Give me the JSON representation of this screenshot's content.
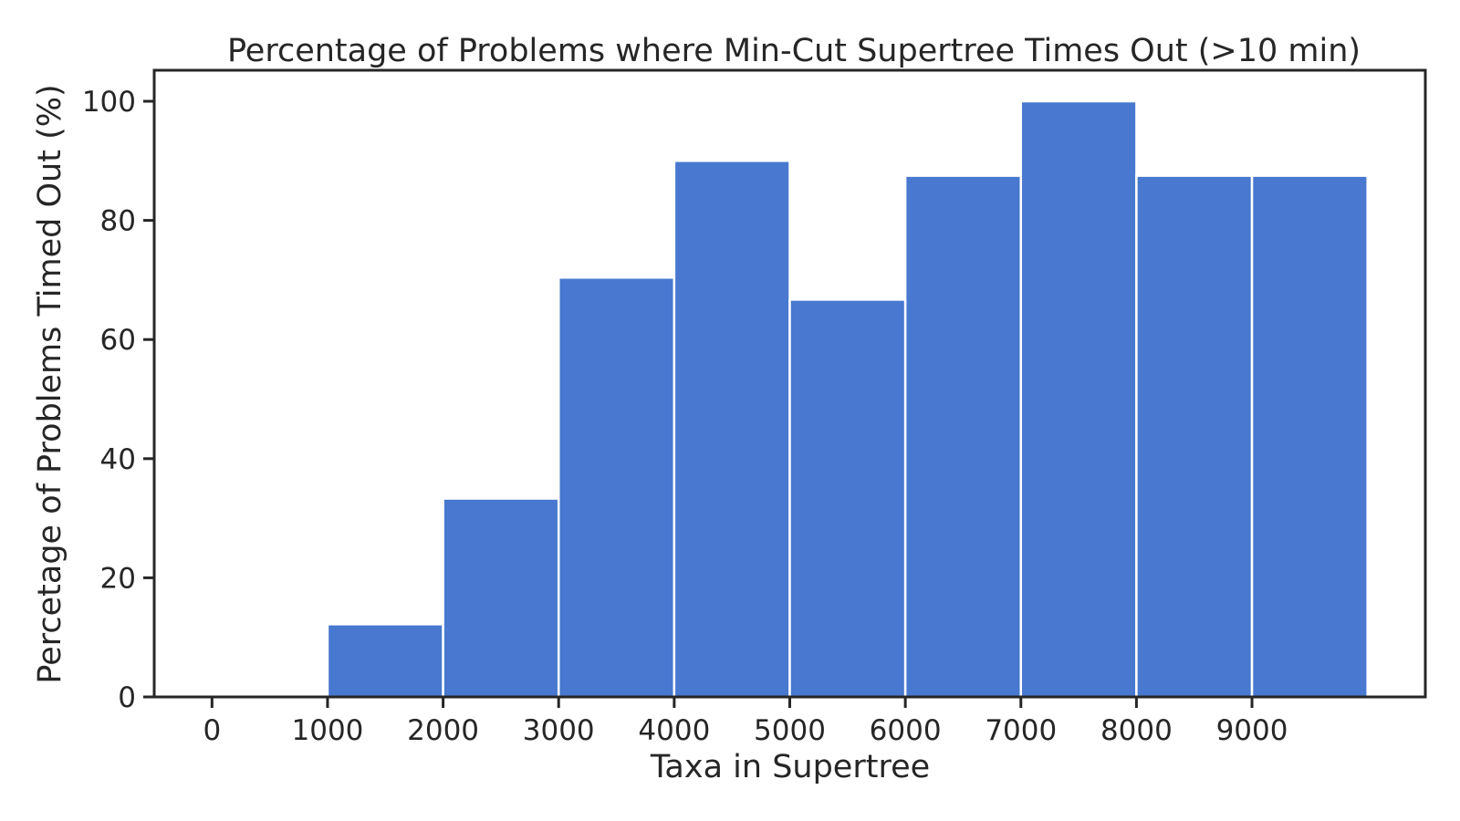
{
  "chart_data": {
    "type": "bar",
    "title": "Percentage of Problems where Min-Cut Supertree Times Out (>10 min)",
    "xlabel": "Taxa in Supertree",
    "ylabel": "Percetage of Problems Timed Out (%)",
    "bin_width": 1000,
    "bins": [
      {
        "start": 0,
        "end": 1000,
        "value": 0
      },
      {
        "start": 1000,
        "end": 2000,
        "value": 12.2
      },
      {
        "start": 2000,
        "end": 3000,
        "value": 33.3
      },
      {
        "start": 3000,
        "end": 4000,
        "value": 70.4
      },
      {
        "start": 4000,
        "end": 5000,
        "value": 90.0
      },
      {
        "start": 5000,
        "end": 6000,
        "value": 66.7
      },
      {
        "start": 6000,
        "end": 7000,
        "value": 87.5
      },
      {
        "start": 7000,
        "end": 8000,
        "value": 100.0
      },
      {
        "start": 8000,
        "end": 9000,
        "value": 87.5
      },
      {
        "start": 9000,
        "end": 10000,
        "value": 87.5
      }
    ],
    "xlim": [
      -500,
      10500
    ],
    "ylim": [
      0,
      105
    ],
    "xticks": [
      0,
      1000,
      2000,
      3000,
      4000,
      5000,
      6000,
      7000,
      8000,
      9000
    ],
    "xtick_labels": [
      "0",
      "1000",
      "2000",
      "3000",
      "4000",
      "5000",
      "6000",
      "7000",
      "8000",
      "9000"
    ],
    "yticks": [
      0,
      20,
      40,
      60,
      80,
      100
    ],
    "ytick_labels": [
      "0",
      "20",
      "40",
      "60",
      "80",
      "100"
    ],
    "bar_color": "#4878cf",
    "grid": false,
    "legend": "none"
  }
}
